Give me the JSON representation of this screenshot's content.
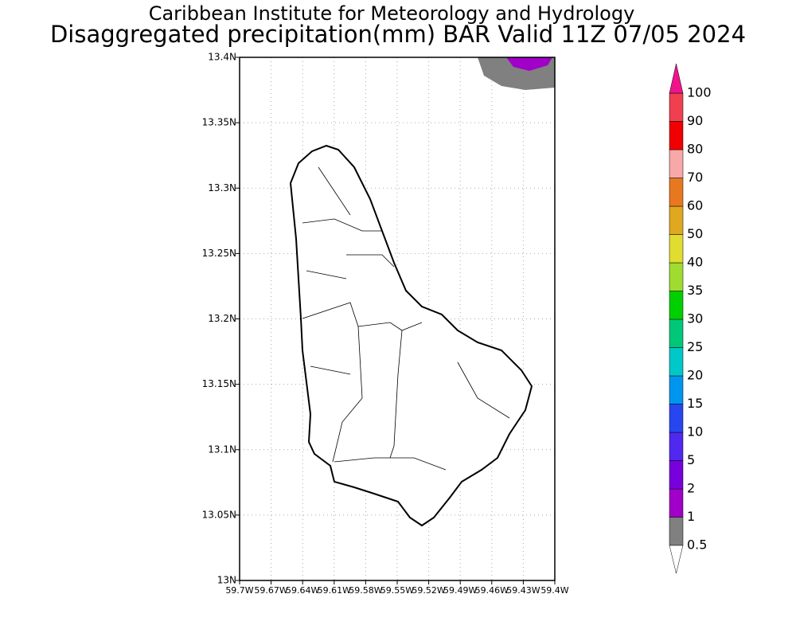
{
  "header": {
    "title": "Caribbean Institute for Meteorology and Hydrology",
    "subtitle": "Disaggregated precipitation(mm) BAR Valid 11Z 07/05 2024"
  },
  "map": {
    "yticks": [
      "13N",
      "13.05N",
      "13.1N",
      "13.15N",
      "13.2N",
      "13.25N",
      "13.3N",
      "13.35N",
      "13.4N"
    ],
    "xticks": [
      "59.7W",
      "59.67W",
      "59.64W",
      "59.61W",
      "59.58W",
      "59.55W",
      "59.52W",
      "59.49W",
      "59.46W",
      "59.43W",
      "59.4W"
    ]
  },
  "colorbar": {
    "levels": [
      0.5,
      1,
      2,
      5,
      10,
      15,
      20,
      25,
      30,
      35,
      40,
      50,
      60,
      70,
      80,
      90,
      100
    ],
    "colors": [
      "#808080",
      "#a000c8",
      "#7800dc",
      "#5028f0",
      "#2846f0",
      "#0096f0",
      "#00c8c8",
      "#00c878",
      "#00d000",
      "#a0dc30",
      "#e0dc30",
      "#e0a820",
      "#e87820",
      "#f8a8a8",
      "#f00000",
      "#f04050"
    ],
    "under_color": "#ffffff",
    "over_color": "#f0148c"
  }
}
